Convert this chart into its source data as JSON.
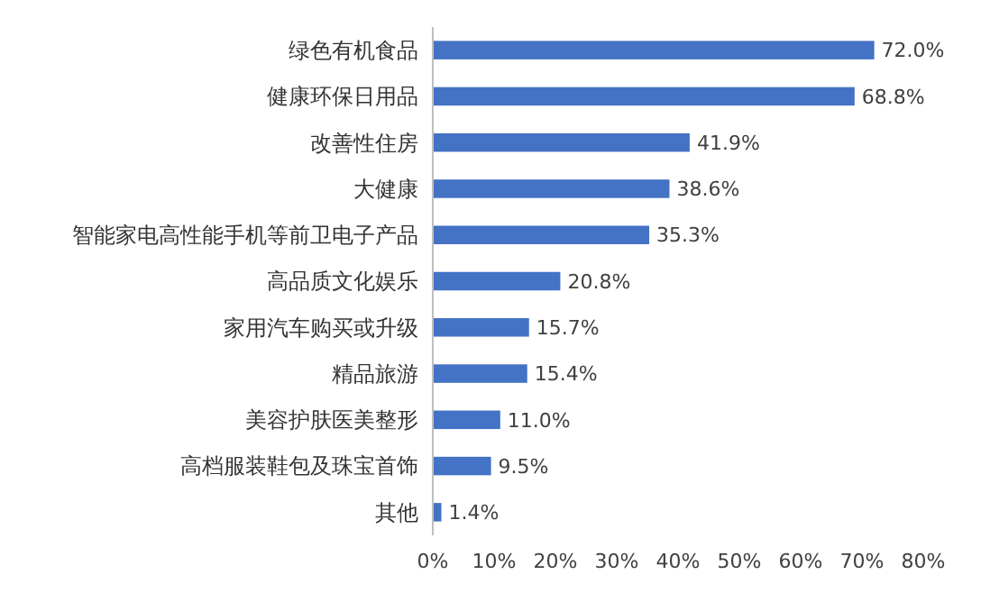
{
  "chart_data": {
    "type": "bar",
    "orientation": "horizontal",
    "categories": [
      "绿色有机食品",
      "健康环保日用品",
      "改善性住房",
      "大健康",
      "智能家电高性能手机等前卫电子产品",
      "高品质文化娱乐",
      "家用汽车购买或升级",
      "精品旅游",
      "美容护肤医美整形",
      "高档服装鞋包及珠宝首饰",
      "其他"
    ],
    "values": [
      72.0,
      68.8,
      41.9,
      38.6,
      35.3,
      20.8,
      15.7,
      15.4,
      11.0,
      9.5,
      1.4
    ],
    "value_labels": [
      "72.0%",
      "68.8%",
      "41.9%",
      "38.6%",
      "35.3%",
      "20.8%",
      "15.7%",
      "15.4%",
      "11.0%",
      "9.5%",
      "1.4%"
    ],
    "color": "#4472c4",
    "xlim": [
      0,
      80
    ],
    "xticks": [
      {
        "value": 0,
        "label": "0%"
      },
      {
        "value": 10,
        "label": "10%"
      },
      {
        "value": 20,
        "label": "20%"
      },
      {
        "value": 30,
        "label": "30%"
      },
      {
        "value": 40,
        "label": "40%"
      },
      {
        "value": 50,
        "label": "50%"
      },
      {
        "value": 60,
        "label": "60%"
      },
      {
        "value": 70,
        "label": "70%"
      },
      {
        "value": 80,
        "label": "80%"
      }
    ],
    "grid": false
  }
}
